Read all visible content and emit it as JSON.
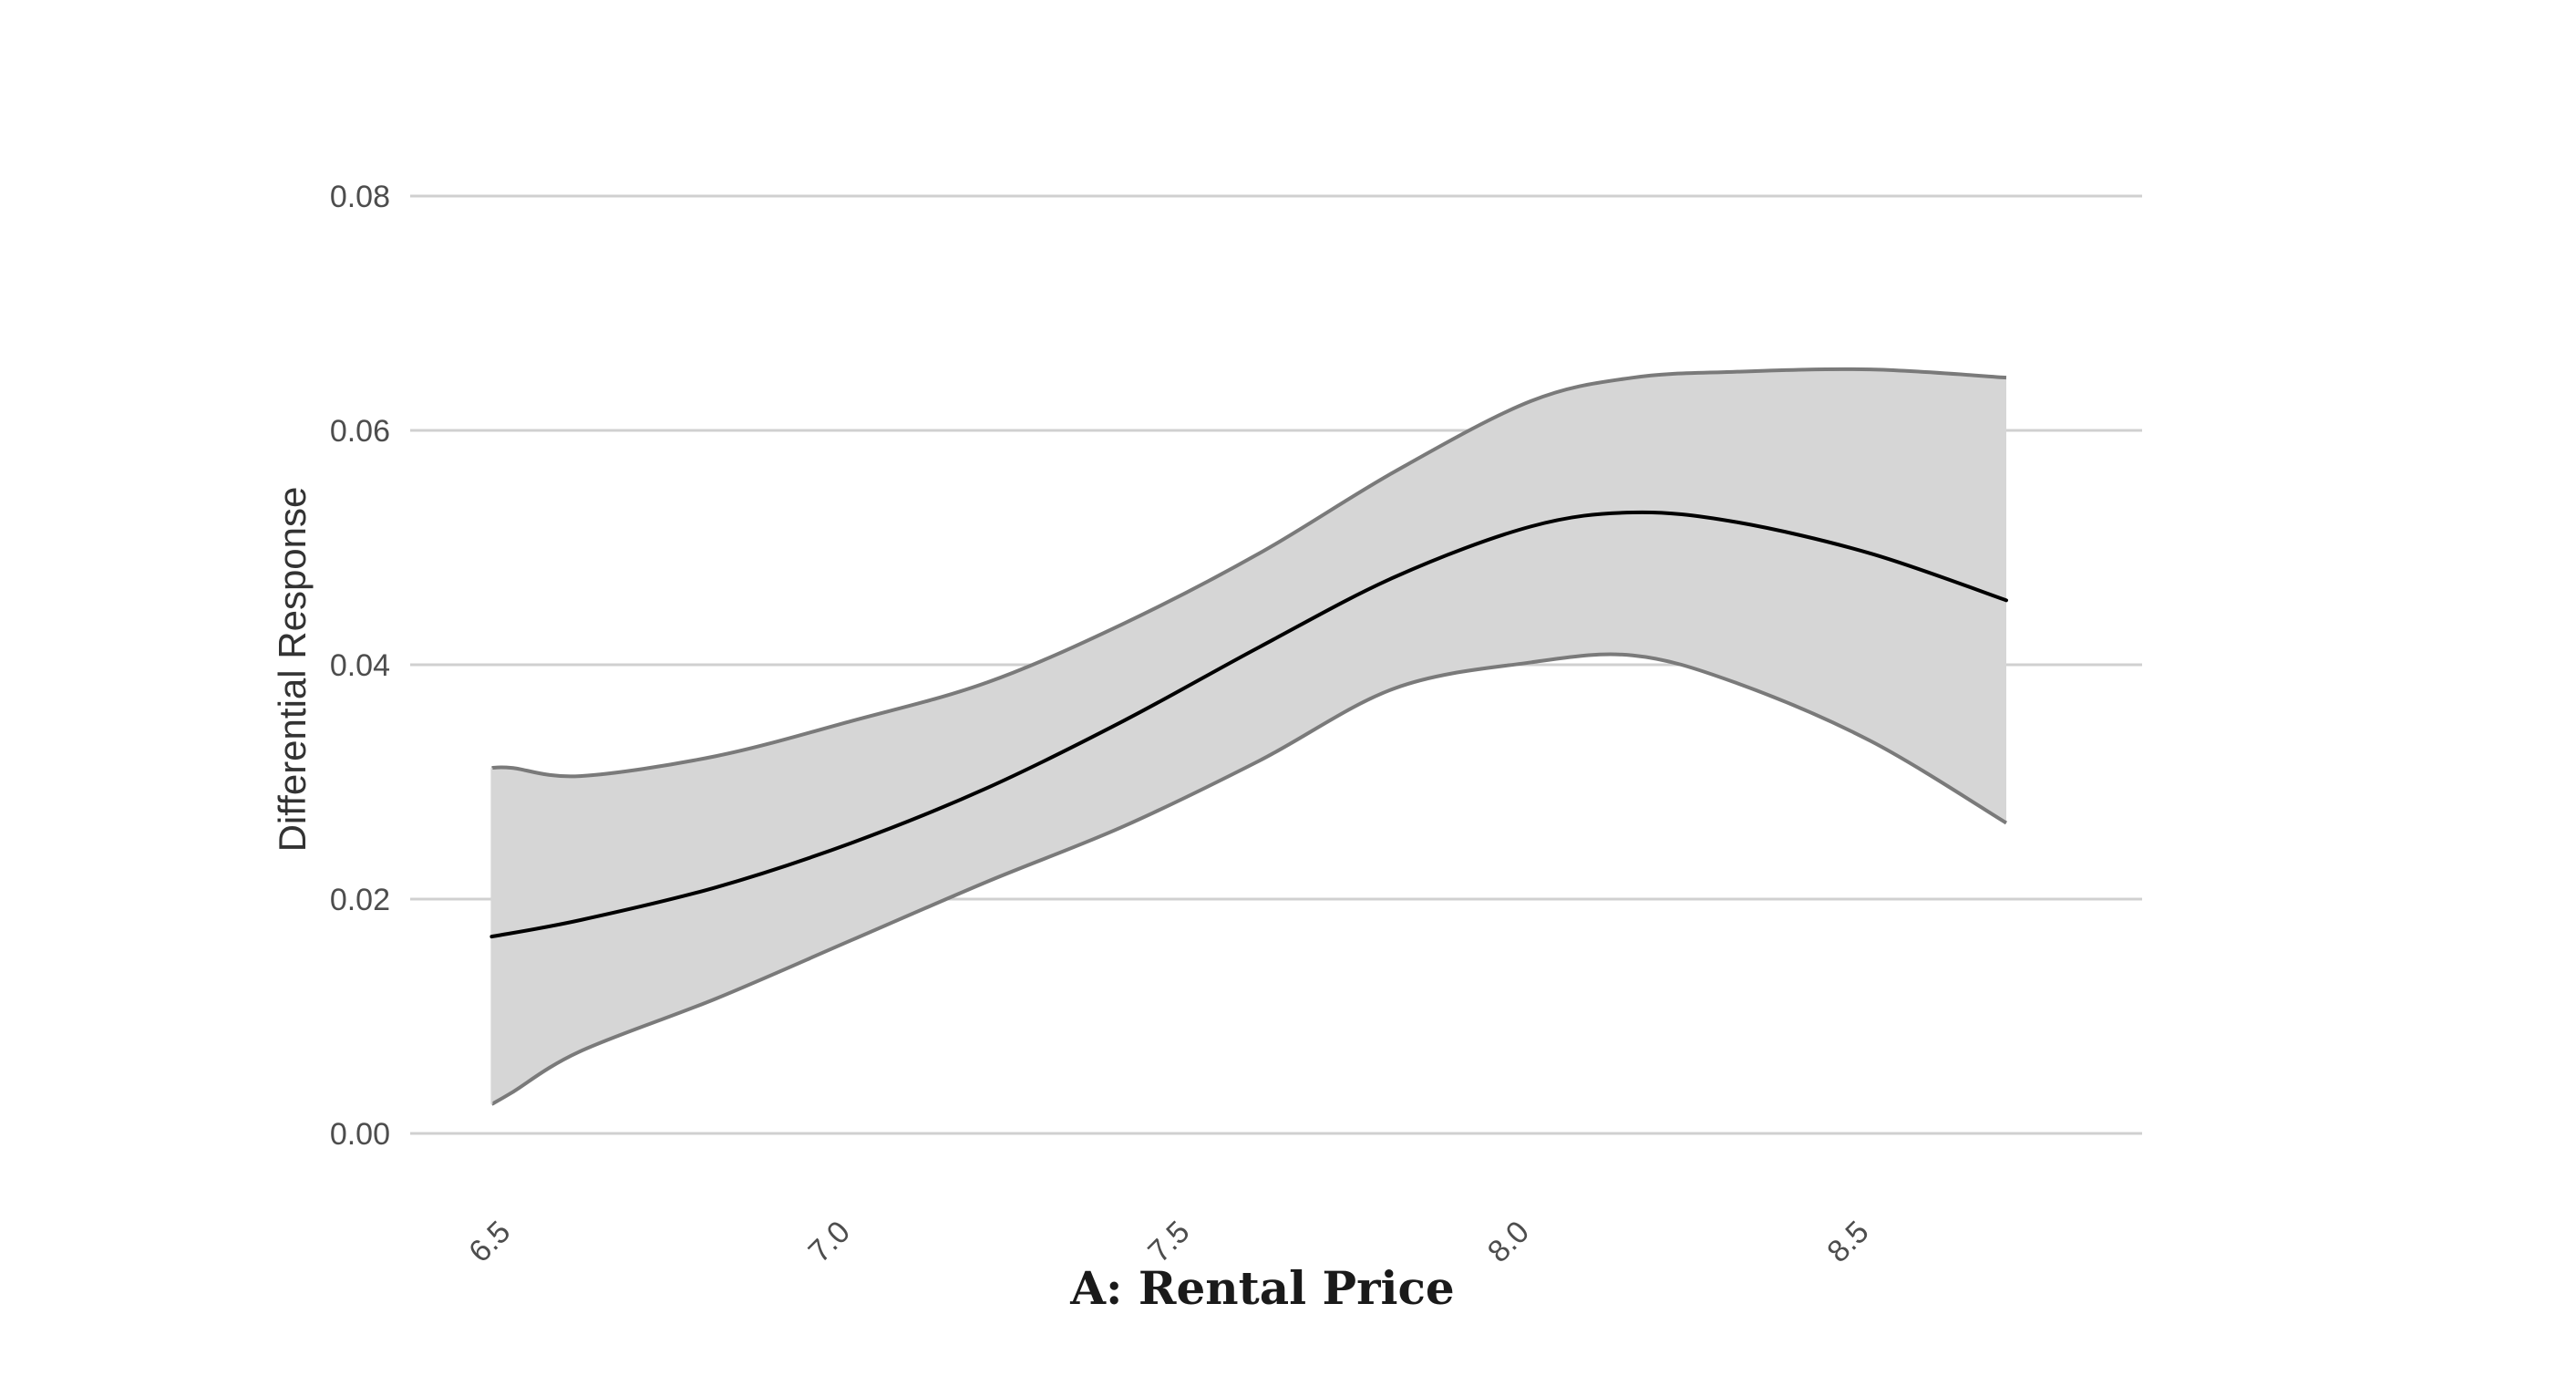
{
  "chart_data": {
    "type": "line",
    "title": "",
    "xlabel": "A: Rental Price",
    "ylabel": "Differential Response",
    "xlim": [
      6.35,
      8.9
    ],
    "ylim": [
      0,
      0.08
    ],
    "x_ticks": [
      6.5,
      7.0,
      7.5,
      8.0,
      8.5
    ],
    "x_tick_labels": [
      "6.5",
      "7.0",
      "7.5",
      "8.0",
      "8.5"
    ],
    "y_ticks": [
      0.0,
      0.02,
      0.04,
      0.06,
      0.08
    ],
    "y_tick_labels": [
      "0.00",
      "0.02",
      "0.04",
      "0.06",
      "0.08"
    ],
    "grid": "horizontal",
    "legend": "none",
    "colors": {
      "line": "#000000",
      "band_fill": "#d6d6d6",
      "band_edge": "#7a7a7a",
      "grid": "#d0d0d0"
    },
    "series": [
      {
        "x": [
          6.47,
          6.6,
          6.8,
          7.0,
          7.2,
          7.4,
          7.6,
          7.8,
          8.0,
          8.15,
          8.3,
          8.5,
          8.7
        ],
        "y": [
          0.0168,
          0.0182,
          0.021,
          0.0248,
          0.0295,
          0.0352,
          0.0415,
          0.0475,
          0.0518,
          0.053,
          0.0522,
          0.0495,
          0.0455
        ]
      }
    ],
    "band": {
      "x": [
        6.47,
        6.5,
        6.6,
        6.8,
        7.0,
        7.2,
        7.4,
        7.6,
        7.8,
        8.0,
        8.15,
        8.3,
        8.5,
        8.7
      ],
      "upper": [
        0.0312,
        0.0312,
        0.0305,
        0.0322,
        0.0352,
        0.0385,
        0.0435,
        0.0495,
        0.0565,
        0.0625,
        0.0645,
        0.065,
        0.0652,
        0.0645
      ],
      "lower": [
        0.0025,
        0.0035,
        0.007,
        0.0115,
        0.0165,
        0.0215,
        0.0262,
        0.0318,
        0.038,
        0.0402,
        0.0408,
        0.0385,
        0.0335,
        0.0265
      ]
    }
  }
}
